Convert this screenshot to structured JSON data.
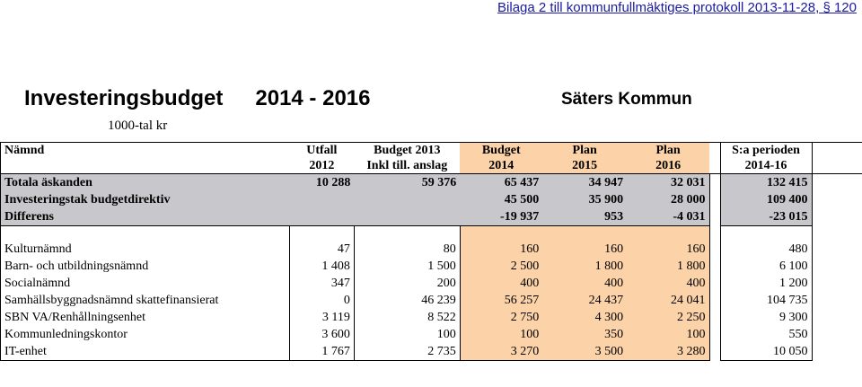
{
  "header_line": "Bilaga 2 till kommunfullmäktiges protokoll 2013-11-28, § 120",
  "title": "Investeringsbudget",
  "title_years": "2014 - 2016",
  "organization": "Säters Kommun",
  "unit": "1000-tal kr",
  "columns": {
    "namnd": "Nämnd",
    "utfall": [
      "Utfall",
      "2012"
    ],
    "budget2013": [
      "Budget 2013",
      "Inkl till. anslag"
    ],
    "budget2014": [
      "Budget",
      "2014"
    ],
    "plan2015": [
      "Plan",
      "2015"
    ],
    "plan2016": [
      "Plan",
      "2016"
    ],
    "summa": [
      "S:a perioden",
      "2014-16"
    ]
  },
  "summary_rows": [
    {
      "name": "Totala äskanden",
      "utfall": "10 288",
      "budget2013": "59 376",
      "budget2014": "65 437",
      "plan2015": "34 947",
      "plan2016": "32 031",
      "summa": "132 415"
    },
    {
      "name": "Investeringstak budgetdirektiv",
      "utfall": "",
      "budget2013": "",
      "budget2014": "45 500",
      "plan2015": "35 900",
      "plan2016": "28 000",
      "summa": "109 400"
    },
    {
      "name": "Differens",
      "utfall": "",
      "budget2013": "",
      "budget2014": "-19 937",
      "plan2015": "953",
      "plan2016": "-4 031",
      "summa": "-23 015"
    }
  ],
  "rows": [
    {
      "name": "Kulturnämnd",
      "utfall": "47",
      "budget2013": "80",
      "budget2014": "160",
      "plan2015": "160",
      "plan2016": "160",
      "summa": "480"
    },
    {
      "name": "Barn- och utbildningsnämnd",
      "utfall": "1 408",
      "budget2013": "1 500",
      "budget2014": "2 500",
      "plan2015": "1 800",
      "plan2016": "1 800",
      "summa": "6 100"
    },
    {
      "name": "Socialnämnd",
      "utfall": "347",
      "budget2013": "200",
      "budget2014": "400",
      "plan2015": "400",
      "plan2016": "400",
      "summa": "1 200"
    },
    {
      "name": "Samhällsbyggnadsnämnd skattefinansierat",
      "utfall": "0",
      "budget2013": "46 239",
      "budget2014": "56 257",
      "plan2015": "24 437",
      "plan2016": "24 041",
      "summa": "104 735"
    },
    {
      "name": "SBN VA/Renhållningsenhet",
      "utfall": "3 119",
      "budget2013": "8 522",
      "budget2014": "2 750",
      "plan2015": "4 300",
      "plan2016": "2 250",
      "summa": "9 300"
    },
    {
      "name": "Kommunledningskontor",
      "utfall": "3 600",
      "budget2013": "100",
      "budget2014": "100",
      "plan2015": "350",
      "plan2016": "100",
      "summa": "550"
    },
    {
      "name": "IT-enhet",
      "utfall": "1 767",
      "budget2013": "2 735",
      "budget2014": "3 270",
      "plan2015": "3 500",
      "plan2016": "3 280",
      "summa": "10 050"
    }
  ],
  "colors": {
    "summary_bg": "#c8c8cc",
    "highlight_bg": "#fcd3a8",
    "header_link": "#1a1aa6"
  }
}
